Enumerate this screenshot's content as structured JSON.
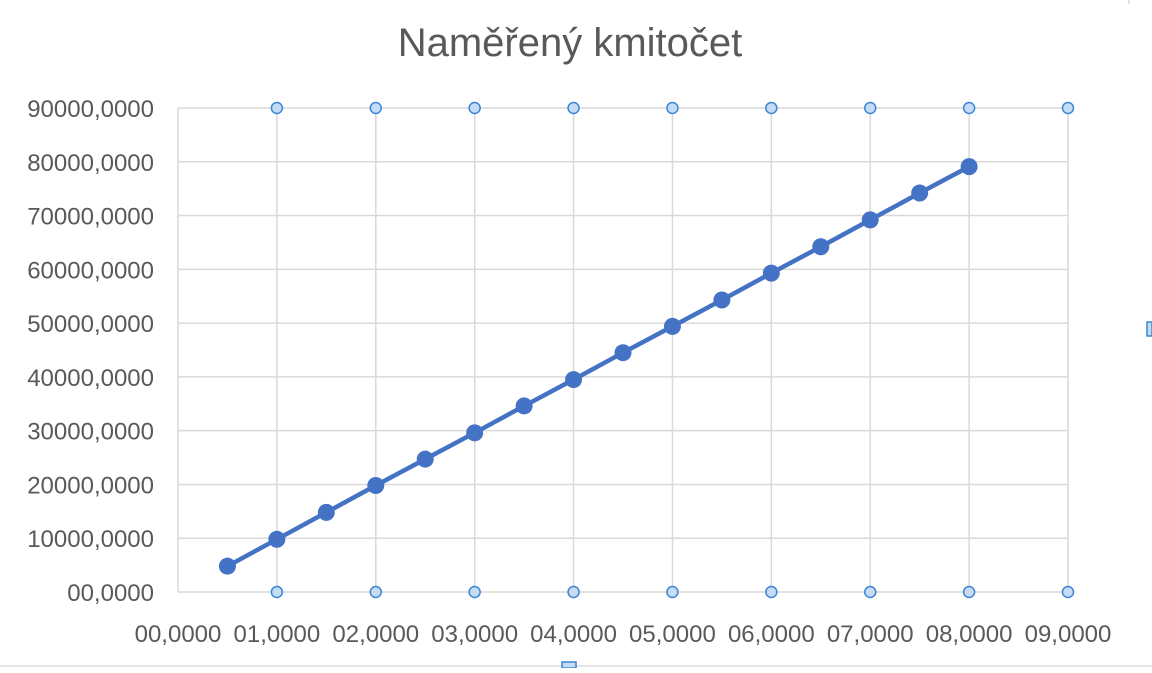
{
  "chart_data": {
    "type": "line",
    "title": "Naměřený kmitočet",
    "xlabel": "",
    "ylabel": "",
    "xlim": [
      0,
      9
    ],
    "ylim": [
      0,
      90000
    ],
    "grid": true,
    "legend": "none",
    "x_ticks": [
      0,
      1,
      2,
      3,
      4,
      5,
      6,
      7,
      8,
      9
    ],
    "x_tick_labels": [
      "00,0000",
      "01,0000",
      "02,0000",
      "03,0000",
      "04,0000",
      "05,0000",
      "06,0000",
      "07,0000",
      "08,0000",
      "09,0000"
    ],
    "y_ticks": [
      0,
      10000,
      20000,
      30000,
      40000,
      50000,
      60000,
      70000,
      80000,
      90000
    ],
    "y_tick_labels": [
      "00,0000",
      "10000,0000",
      "20000,0000",
      "30000,0000",
      "40000,0000",
      "50000,0000",
      "60000,0000",
      "70000,0000",
      "80000,0000",
      "90000,0000"
    ],
    "series": [
      {
        "x": [
          0.5,
          1.0,
          1.5,
          2.0,
          2.5,
          3.0,
          3.5,
          4.0,
          4.5,
          5.0,
          5.5,
          6.0,
          6.5,
          7.0,
          7.5,
          8.0
        ],
        "y": [
          4800,
          9800,
          14800,
          19800,
          24700,
          29600,
          34600,
          39500,
          44500,
          49400,
          54300,
          59300,
          64200,
          69200,
          74200,
          79100
        ],
        "color": "#4472c4"
      }
    ]
  }
}
